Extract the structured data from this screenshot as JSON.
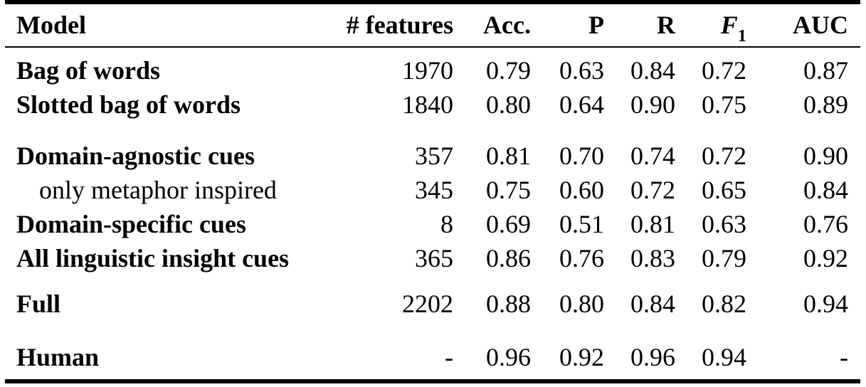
{
  "style": {
    "background": "#ffffff",
    "text_color": "#000000",
    "rule_color": "#000000"
  },
  "table": {
    "columns": [
      {
        "key": "model",
        "label": "Model",
        "align": "left"
      },
      {
        "key": "features",
        "label": "# features",
        "align": "right"
      },
      {
        "key": "acc",
        "label": "Acc.",
        "align": "right"
      },
      {
        "key": "p",
        "label": "P",
        "align": "right"
      },
      {
        "key": "r",
        "label": "R",
        "align": "right"
      },
      {
        "key": "f1",
        "label": "F",
        "sub": "1",
        "align": "right"
      },
      {
        "key": "auc",
        "label": "AUC",
        "align": "right"
      }
    ],
    "groups": [
      {
        "rows": [
          {
            "model": "Bag of words",
            "bold": true,
            "indent": false,
            "features": "1970",
            "acc": "0.79",
            "p": "0.63",
            "r": "0.84",
            "f1": "0.72",
            "auc": "0.87"
          },
          {
            "model": "Slotted bag of words",
            "bold": true,
            "indent": false,
            "features": "1840",
            "acc": "0.80",
            "p": "0.64",
            "r": "0.90",
            "f1": "0.75",
            "auc": "0.89"
          }
        ]
      },
      {
        "rows": [
          {
            "model": "Domain-agnostic cues",
            "bold": true,
            "indent": false,
            "features": "357",
            "acc": "0.81",
            "p": "0.70",
            "r": "0.74",
            "f1": "0.72",
            "auc": "0.90"
          },
          {
            "model": "only metaphor inspired",
            "bold": false,
            "indent": true,
            "features": "345",
            "acc": "0.75",
            "p": "0.60",
            "r": "0.72",
            "f1": "0.65",
            "auc": "0.84"
          },
          {
            "model": "Domain-specific cues",
            "bold": true,
            "indent": false,
            "features": "8",
            "acc": "0.69",
            "p": "0.51",
            "r": "0.81",
            "f1": "0.63",
            "auc": "0.76"
          },
          {
            "model": "All linguistic insight cues",
            "bold": true,
            "indent": false,
            "features": "365",
            "acc": "0.86",
            "p": "0.76",
            "r": "0.83",
            "f1": "0.79",
            "auc": "0.92"
          }
        ]
      },
      {
        "rows": [
          {
            "model": "Full",
            "bold": true,
            "indent": false,
            "features": "2202",
            "acc": "0.88",
            "p": "0.80",
            "r": "0.84",
            "f1": "0.82",
            "auc": "0.94"
          }
        ]
      },
      {
        "rows": [
          {
            "model": "Human",
            "bold": true,
            "indent": false,
            "features": "-",
            "acc": "0.96",
            "p": "0.92",
            "r": "0.96",
            "f1": "0.94",
            "auc": "-"
          }
        ]
      }
    ]
  }
}
